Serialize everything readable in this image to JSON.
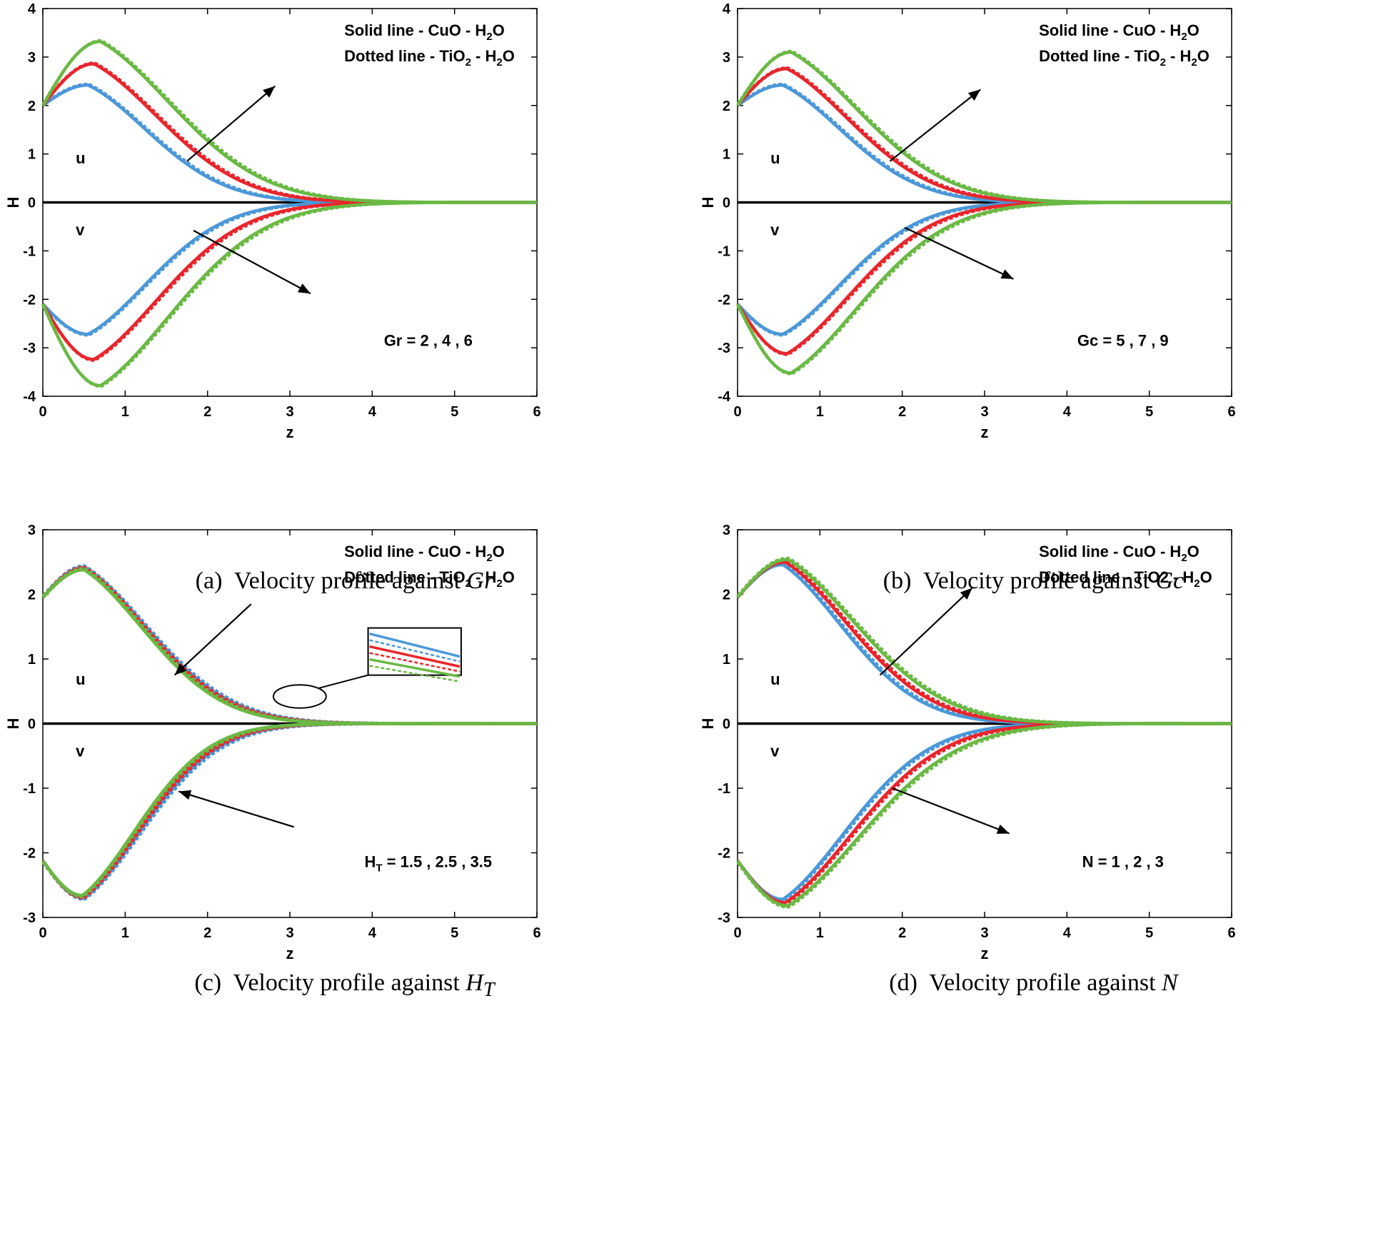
{
  "chart_data": [
    {
      "id": "a",
      "type": "line",
      "caption": {
        "prefix": "(a)",
        "text": "Velocity profile against ",
        "symbol": "Gr",
        "symbol_sub": ""
      },
      "xlabel": "z",
      "ylabel": "H",
      "xlim": [
        0,
        6
      ],
      "ylim": [
        -4,
        4
      ],
      "xticks": [
        "0",
        "1",
        "2",
        "3",
        "4",
        "5",
        "6"
      ],
      "yticks": [
        "4",
        "3",
        "2",
        "1",
        "0",
        "-1",
        "-2",
        "-3",
        "-4"
      ],
      "legend": {
        "solid": {
          "a": "Solid line - CuO - H",
          "sub": "2",
          "b": "O"
        },
        "dotted": {
          "a": "Dotted line - TiO",
          "sub1": "2",
          "mid": " - H",
          "sub2": "2",
          "b": "O"
        }
      },
      "labels": {
        "u": "u",
        "v": "v"
      },
      "param": {
        "pre": "Gr",
        "sub": "",
        "post": " = 2 , 4 , 6"
      },
      "u_start": 2.0,
      "v_start": -2.1,
      "series": [
        {
          "name": "blue",
          "color": "#4b98d8",
          "u_peak": 2.42,
          "u_peak_x": 0.55,
          "v_peak": -2.72,
          "v_peak_x": 0.55,
          "u_decay": 1.05,
          "v_decay": 1.05
        },
        {
          "name": "red",
          "color": "#e8262d",
          "u_peak": 2.86,
          "u_peak_x": 0.62,
          "v_peak": -3.24,
          "v_peak_x": 0.62,
          "u_decay": 1.15,
          "v_decay": 1.15
        },
        {
          "name": "green",
          "color": "#6ab944",
          "u_peak": 3.32,
          "u_peak_x": 0.7,
          "v_peak": -3.78,
          "v_peak_x": 0.7,
          "u_decay": 1.25,
          "v_decay": 1.25
        }
      ],
      "arrows": [
        {
          "from": [
            1.75,
            0.85
          ],
          "to": [
            2.82,
            2.4
          ]
        },
        {
          "from": [
            1.83,
            -0.58
          ],
          "to": [
            3.25,
            -1.88
          ]
        }
      ]
    },
    {
      "id": "b",
      "type": "line",
      "caption": {
        "prefix": "(b)",
        "text": "Velocity profile against ",
        "symbol": "Gc",
        "symbol_sub": ""
      },
      "xlabel": "z",
      "ylabel": "H",
      "xlim": [
        0,
        6
      ],
      "ylim": [
        -4,
        4
      ],
      "xticks": [
        "0",
        "1",
        "2",
        "3",
        "4",
        "5",
        "6"
      ],
      "yticks": [
        "4",
        "3",
        "2",
        "1",
        "0",
        "-1",
        "-2",
        "-3",
        "-4"
      ],
      "legend": {
        "solid": {
          "a": "Solid line - CuO - H",
          "sub": "2",
          "b": "O"
        },
        "dotted": {
          "a": "Dotted line - TiO",
          "sub1": "2",
          "mid": " - H",
          "sub2": "2",
          "b": "O"
        }
      },
      "labels": {
        "u": "u",
        "v": "v"
      },
      "param": {
        "pre": "Gc",
        "sub": "",
        "post": " = 5 , 7 , 9"
      },
      "u_start": 2.0,
      "v_start": -2.1,
      "series": [
        {
          "name": "blue",
          "color": "#4b98d8",
          "u_peak": 2.42,
          "u_peak_x": 0.55,
          "v_peak": -2.72,
          "v_peak_x": 0.55,
          "u_decay": 1.05,
          "v_decay": 1.05
        },
        {
          "name": "red",
          "color": "#e8262d",
          "u_peak": 2.76,
          "u_peak_x": 0.6,
          "v_peak": -3.12,
          "v_peak_x": 0.6,
          "u_decay": 1.12,
          "v_decay": 1.12
        },
        {
          "name": "green",
          "color": "#6ab944",
          "u_peak": 3.1,
          "u_peak_x": 0.65,
          "v_peak": -3.52,
          "v_peak_x": 0.65,
          "u_decay": 1.2,
          "v_decay": 1.2
        }
      ],
      "arrows": [
        {
          "from": [
            1.85,
            0.85
          ],
          "to": [
            2.95,
            2.33
          ]
        },
        {
          "from": [
            2.03,
            -0.52
          ],
          "to": [
            3.35,
            -1.58
          ]
        }
      ]
    },
    {
      "id": "c",
      "type": "line",
      "caption": {
        "prefix": "(c)",
        "text": "Velocity profile against ",
        "symbol": "H",
        "symbol_sub": "T"
      },
      "xlabel": "z",
      "ylabel": "H",
      "xlim": [
        0,
        6
      ],
      "ylim": [
        -3,
        3
      ],
      "xticks": [
        "0",
        "1",
        "2",
        "3",
        "4",
        "5",
        "6"
      ],
      "yticks": [
        "3",
        "2",
        "1",
        "0",
        "-1",
        "-2",
        "-3"
      ],
      "legend": {
        "solid": {
          "a": "Solid line - CuO - H",
          "sub": "2",
          "b": "O"
        },
        "dotted": {
          "a": "Dotted line - TiO",
          "sub1": "2",
          "mid": " - H",
          "sub2": "2",
          "b": "O"
        }
      },
      "labels": {
        "u": "u",
        "v": "v"
      },
      "param": {
        "pre": "H",
        "sub": "T",
        "post": " = 1.5 , 2.5 , 3.5"
      },
      "u_start": 1.95,
      "v_start": -2.12,
      "series": [
        {
          "name": "blue",
          "color": "#4b98d8",
          "u_peak": 2.42,
          "u_peak_x": 0.5,
          "v_peak": -2.7,
          "v_peak_x": 0.5,
          "u_decay": 1.12,
          "v_decay": 1.02
        },
        {
          "name": "red",
          "color": "#e8262d",
          "u_peak": 2.4,
          "u_peak_x": 0.5,
          "v_peak": -2.68,
          "v_peak_x": 0.49,
          "u_decay": 1.09,
          "v_decay": 0.99
        },
        {
          "name": "green",
          "color": "#6ab944",
          "u_peak": 2.38,
          "u_peak_x": 0.5,
          "v_peak": -2.66,
          "v_peak_x": 0.48,
          "u_decay": 1.06,
          "v_decay": 0.96
        }
      ],
      "arrows": [
        {
          "from": [
            2.53,
            1.85
          ],
          "to": [
            1.6,
            0.75
          ]
        },
        {
          "from": [
            3.05,
            -1.6
          ],
          "to": [
            1.65,
            -1.05
          ]
        }
      ],
      "annotation": {
        "ellipse": {
          "cx": 3.12,
          "cy": 0.42,
          "rx": 0.32,
          "ry": 0.18
        },
        "inset": {
          "x0": 3.95,
          "x1": 5.08,
          "y0": 1.48,
          "y1": 0.75
        }
      }
    },
    {
      "id": "d",
      "type": "line",
      "caption": {
        "prefix": "(d)",
        "text": "Velocity profile against ",
        "symbol": "N",
        "symbol_sub": ""
      },
      "xlabel": "z",
      "ylabel": "H",
      "xlim": [
        0,
        6
      ],
      "ylim": [
        -3,
        3
      ],
      "xticks": [
        "0",
        "1",
        "2",
        "3",
        "4",
        "5",
        "6"
      ],
      "yticks": [
        "3",
        "2",
        "1",
        "0",
        "-1",
        "-2",
        "-3"
      ],
      "legend": {
        "solid": {
          "a": "Solid line - CuO - H",
          "sub": "2",
          "b": "O"
        },
        "dotted": {
          "a": "Dotted line - TiO2 - H",
          "sub1": "",
          "mid": "",
          "sub2": "2",
          "b": "O"
        }
      },
      "labels": {
        "u": "u",
        "v": "v"
      },
      "param": {
        "pre": "N",
        "sub": "",
        "post": " = 1 , 2 , 3"
      },
      "u_start": 1.95,
      "v_start": -2.12,
      "series": [
        {
          "name": "blue",
          "color": "#4b98d8",
          "u_peak": 2.46,
          "u_peak_x": 0.55,
          "v_peak": -2.72,
          "v_peak_x": 0.55,
          "u_decay": 1.05,
          "v_decay": 1.12
        },
        {
          "name": "red",
          "color": "#e8262d",
          "u_peak": 2.5,
          "u_peak_x": 0.58,
          "v_peak": -2.77,
          "v_peak_x": 0.58,
          "u_decay": 1.12,
          "v_decay": 1.2
        },
        {
          "name": "green",
          "color": "#6ab944",
          "u_peak": 2.54,
          "u_peak_x": 0.61,
          "v_peak": -2.82,
          "v_peak_x": 0.61,
          "u_decay": 1.2,
          "v_decay": 1.3
        }
      ],
      "arrows": [
        {
          "from": [
            1.73,
            0.75
          ],
          "to": [
            2.85,
            2.1
          ]
        },
        {
          "from": [
            1.88,
            -1.0
          ],
          "to": [
            3.3,
            -1.7
          ]
        }
      ]
    }
  ]
}
